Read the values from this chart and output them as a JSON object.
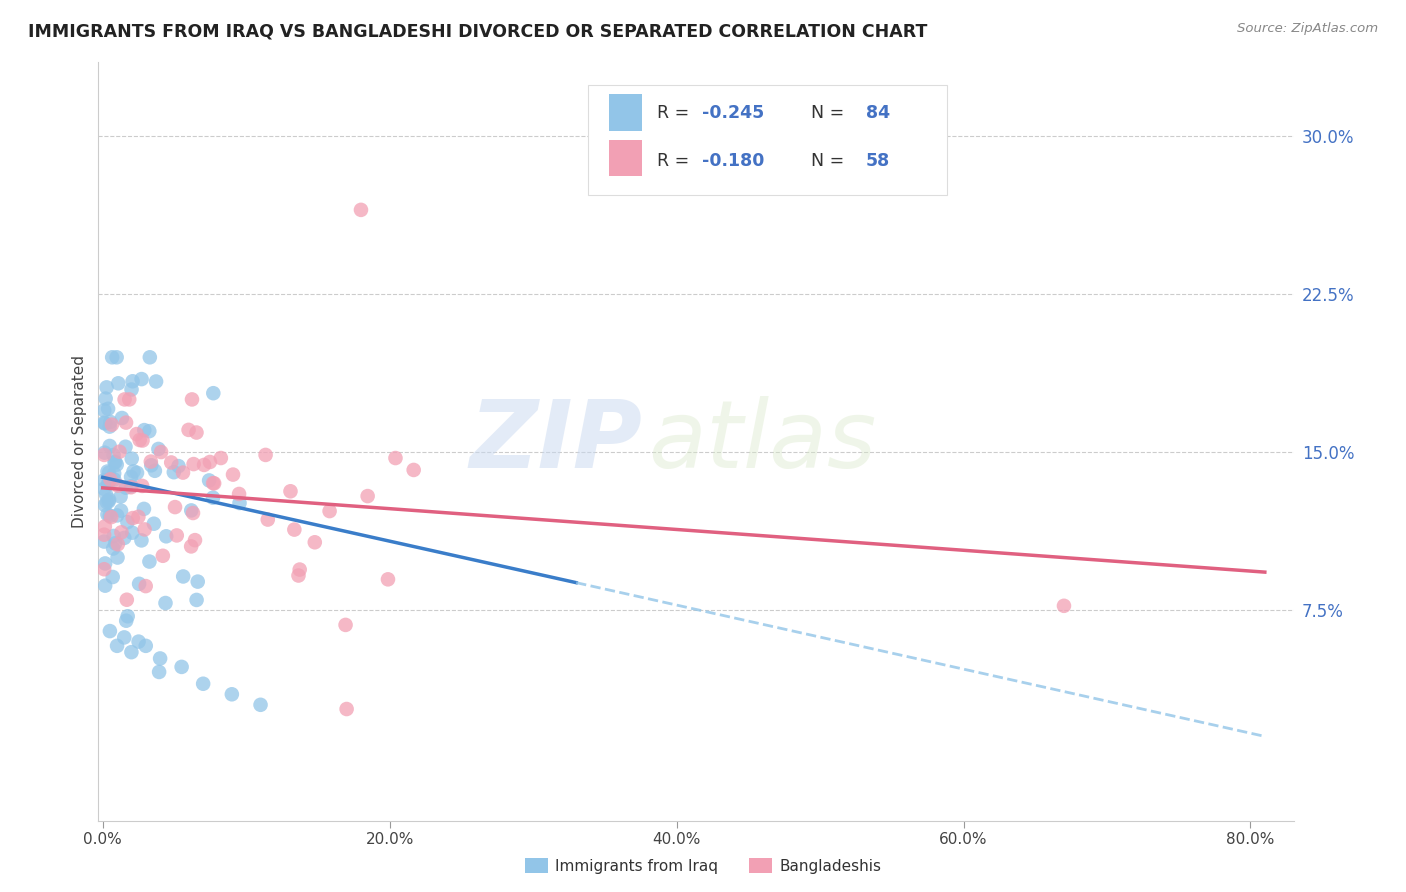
{
  "title": "IMMIGRANTS FROM IRAQ VS BANGLADESHI DIVORCED OR SEPARATED CORRELATION CHART",
  "source": "Source: ZipAtlas.com",
  "ylabel_label": "Divorced or Separated",
  "legend_label1": "Immigrants from Iraq",
  "legend_label2": "Bangladeshis",
  "legend_R1": "-0.245",
  "legend_N1": "84",
  "legend_R2": "-0.180",
  "legend_N2": "58",
  "color_blue": "#92C5E8",
  "color_pink": "#F2A0B4",
  "color_blue_line": "#3A7DC9",
  "color_pink_line": "#E06080",
  "color_axis_blue": "#4472C4",
  "watermark_zip": "ZIP",
  "watermark_atlas": "atlas",
  "xlim_min": -0.003,
  "xlim_max": 0.83,
  "ylim_min": -0.025,
  "ylim_max": 0.335,
  "ytick_positions": [
    0.075,
    0.15,
    0.225,
    0.3
  ],
  "ytick_labels": [
    "7.5%",
    "15.0%",
    "22.5%",
    "30.0%"
  ],
  "xtick_positions": [
    0.0,
    0.2,
    0.4,
    0.6,
    0.8
  ],
  "xtick_labels": [
    "0.0%",
    "20.0%",
    "40.0%",
    "60.0%",
    "80.0%"
  ],
  "grid_color": "#CCCCCC",
  "iraq_trend_x0": 0.0,
  "iraq_trend_x1_solid": 0.33,
  "iraq_trend_x1_dash": 0.81,
  "iraq_trend_y0": 0.138,
  "iraq_trend_y1_solid": 0.088,
  "iraq_trend_y1_dash": 0.015,
  "bang_trend_x0": 0.0,
  "bang_trend_x1": 0.81,
  "bang_trend_y0": 0.133,
  "bang_trend_y1": 0.093
}
